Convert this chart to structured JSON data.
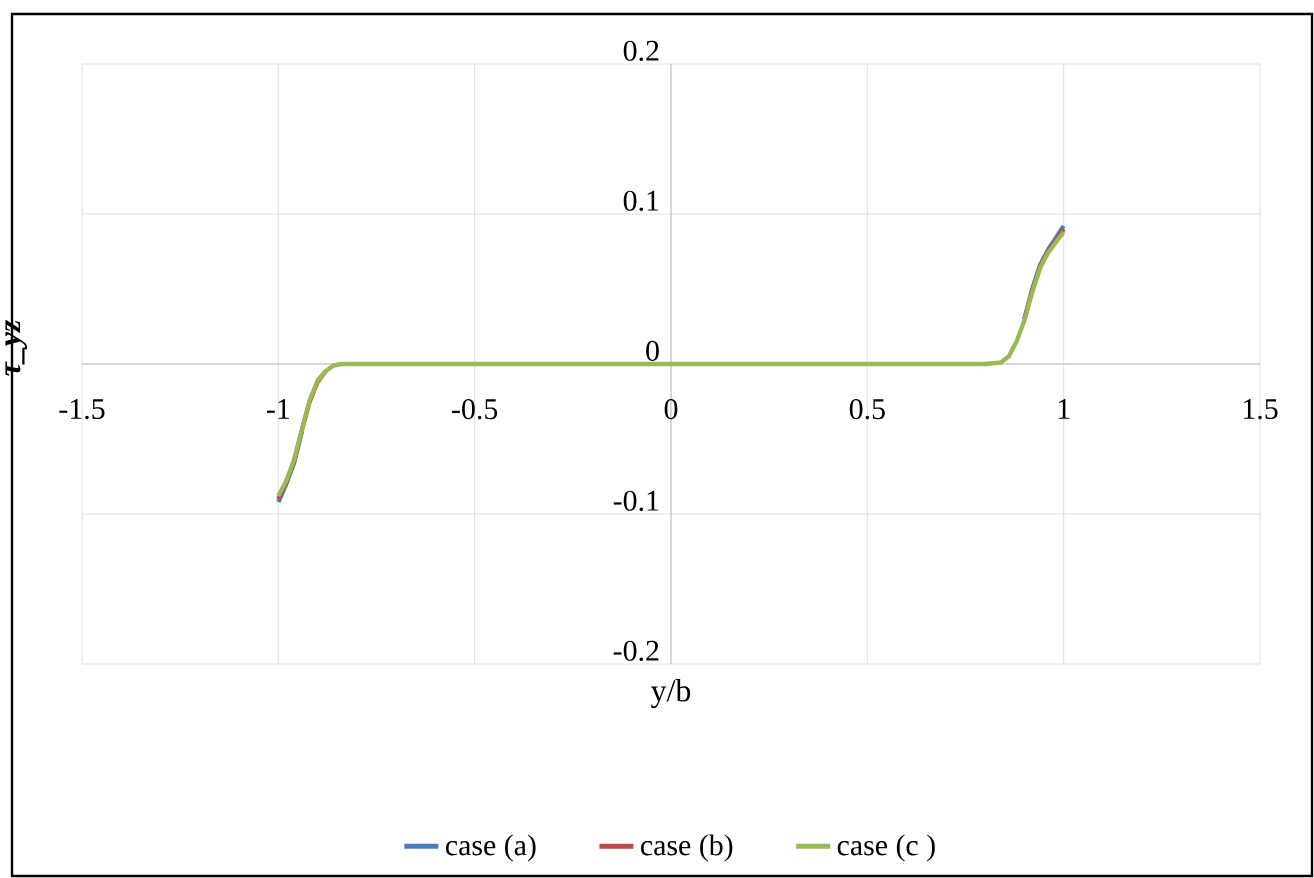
{
  "chart_data": {
    "type": "line",
    "xlabel": "y/b",
    "ylabel": "τ_yz",
    "xlim": [
      -1.5,
      1.5
    ],
    "ylim": [
      -0.2,
      0.2
    ],
    "xticks": [
      -1.5,
      -1,
      -0.5,
      0,
      0.5,
      1,
      1.5
    ],
    "yticks": [
      -0.2,
      -0.1,
      0,
      0.1,
      0.2
    ],
    "grid": true,
    "legend": "bottom",
    "x": [
      -1,
      -0.98,
      -0.96,
      -0.94,
      -0.92,
      -0.9,
      -0.88,
      -0.86,
      -0.84,
      -0.8,
      -0.6,
      -0.4,
      -0.2,
      0,
      0.2,
      0.4,
      0.6,
      0.8,
      0.84,
      0.86,
      0.88,
      0.9,
      0.92,
      0.94,
      0.96,
      0.98,
      1
    ],
    "series": [
      {
        "name": "case (a)",
        "color": "#4a7ebb",
        "values": [
          -0.092,
          -0.08,
          -0.066,
          -0.045,
          null,
          null,
          null,
          null,
          null,
          null,
          null,
          null,
          null,
          null,
          null,
          null,
          null,
          null,
          null,
          null,
          null,
          0.03,
          0.05,
          0.066,
          0.076,
          0.084,
          0.092
        ]
      },
      {
        "name": "case (b)",
        "color": "#be4b48",
        "values": [
          -0.09,
          -0.079,
          -0.065,
          -0.044,
          -0.025,
          -0.012,
          -0.005,
          null,
          null,
          null,
          null,
          null,
          null,
          null,
          null,
          null,
          null,
          null,
          null,
          null,
          null,
          0.03,
          0.049,
          0.065,
          0.075,
          0.082,
          0.09
        ]
      },
      {
        "name": "case (c )",
        "color": "#98b954",
        "values": [
          -0.088,
          -0.078,
          -0.064,
          -0.044,
          -0.024,
          -0.011,
          -0.005,
          -0.001,
          0,
          0,
          0,
          0,
          0,
          0,
          0,
          0,
          0,
          0,
          0.001,
          0.005,
          0.015,
          0.029,
          0.048,
          0.064,
          0.074,
          0.081,
          0.088
        ]
      }
    ]
  }
}
